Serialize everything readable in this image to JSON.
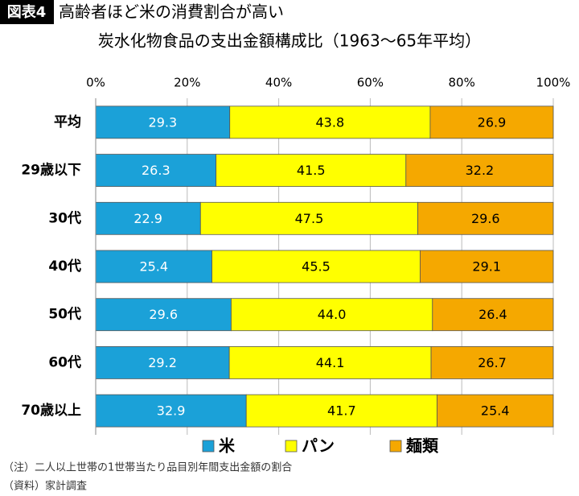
{
  "badge": "図表4",
  "notes": [
    "（注）二人以上世帯の1世帯当たり品目別年間支出金額の割合",
    "（資料）家計調査"
  ],
  "chart_data": {
    "type": "bar",
    "orientation": "horizontal",
    "stacked": true,
    "title": "高齢者ほど米の消費割合が高い",
    "subtitle": "炭水化物食品の支出金額構成比（1963～65年平均）",
    "categories": [
      "平均",
      "29歳以下",
      "30代",
      "40代",
      "50代",
      "60代",
      "70歳以上"
    ],
    "series": [
      {
        "name": "米",
        "color": "#1ba1d8",
        "values": [
          29.3,
          26.3,
          22.9,
          25.4,
          29.6,
          29.2,
          32.9
        ],
        "value_labels": [
          "29.3",
          "26.3",
          "22.9",
          "25.4",
          "29.6",
          "29.2",
          "32.9"
        ]
      },
      {
        "name": "パン",
        "color": "#ffff00",
        "values": [
          43.8,
          41.5,
          47.5,
          45.5,
          44.0,
          44.1,
          41.7
        ],
        "value_labels": [
          "43.8",
          "41.5",
          "47.5",
          "45.5",
          "44.0",
          "44.1",
          "41.7"
        ]
      },
      {
        "name": "麺類",
        "color": "#f5a800",
        "values": [
          26.9,
          32.2,
          29.6,
          29.1,
          26.4,
          26.7,
          25.4
        ],
        "value_labels": [
          "26.9",
          "32.2",
          "29.6",
          "29.1",
          "26.4",
          "26.7",
          "25.4"
        ]
      }
    ],
    "xlim": [
      0,
      100
    ],
    "xticks": [
      {
        "value": 0,
        "label": "0%"
      },
      {
        "value": 20,
        "label": "20%"
      },
      {
        "value": 40,
        "label": "40%"
      },
      {
        "value": 60,
        "label": "60%"
      },
      {
        "value": 80,
        "label": "80%"
      },
      {
        "value": 100,
        "label": "100%"
      }
    ],
    "grid": true,
    "legend_position": "bottom"
  }
}
